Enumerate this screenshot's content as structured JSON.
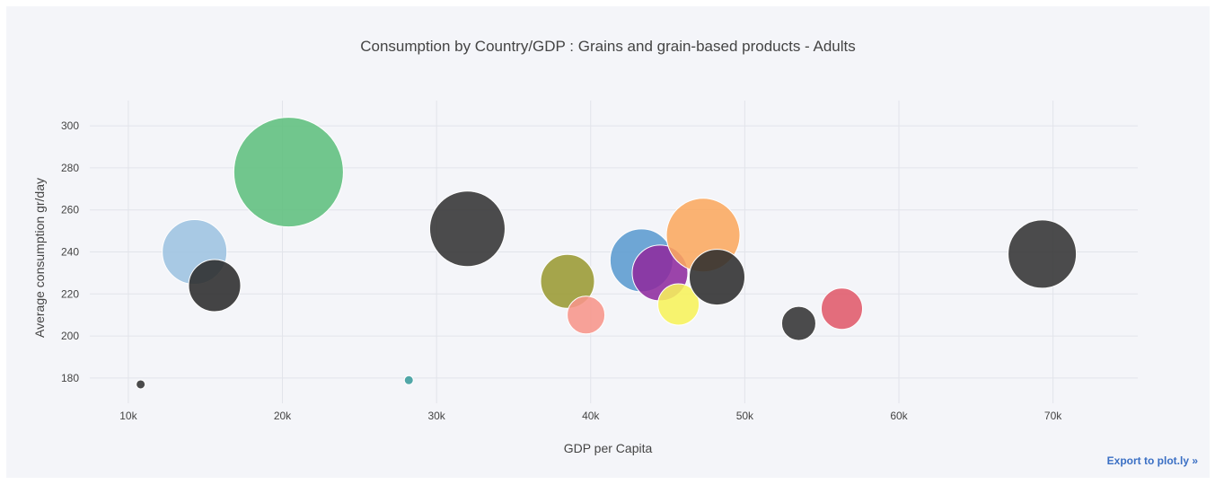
{
  "chart_data": {
    "type": "scatter",
    "title": "Consumption by Country/GDP : Grains and grain-based products  -  Adults",
    "xlabel": "GDP per Capita",
    "ylabel": "Average consumption gr/day",
    "xlim": [
      7500,
      75500
    ],
    "ylim": [
      168,
      312
    ],
    "x_ticks": [
      10000,
      20000,
      30000,
      40000,
      50000,
      60000,
      70000
    ],
    "x_tick_labels": [
      "10k",
      "20k",
      "30k",
      "40k",
      "50k",
      "60k",
      "70k"
    ],
    "y_ticks": [
      180,
      200,
      220,
      240,
      260,
      280,
      300
    ],
    "y_tick_labels": [
      "180",
      "200",
      "220",
      "240",
      "260",
      "280",
      "300"
    ],
    "grid": true,
    "marker": "bubble",
    "points": [
      {
        "x": 10800,
        "y": 177,
        "size": 5,
        "color": "#333333"
      },
      {
        "x": 28200,
        "y": 179,
        "size": 5,
        "color": "#3a9c9c"
      },
      {
        "x": 14300,
        "y": 240,
        "size": 36,
        "color": "#9dc3e0"
      },
      {
        "x": 15600,
        "y": 224,
        "size": 29,
        "color": "#2b2b2b"
      },
      {
        "x": 20400,
        "y": 278,
        "size": 61,
        "color": "#5fbf7d"
      },
      {
        "x": 32000,
        "y": 251,
        "size": 42,
        "color": "#333333"
      },
      {
        "x": 38500,
        "y": 226,
        "size": 30,
        "color": "#9a9a32"
      },
      {
        "x": 39700,
        "y": 210,
        "size": 21,
        "color": "#f7958a"
      },
      {
        "x": 43300,
        "y": 236,
        "size": 35,
        "color": "#5b9bcf"
      },
      {
        "x": 44500,
        "y": 230,
        "size": 31,
        "color": "#8e2b9e"
      },
      {
        "x": 47300,
        "y": 248,
        "size": 41,
        "color": "#fba95f"
      },
      {
        "x": 45700,
        "y": 215,
        "size": 23,
        "color": "#f7f35a"
      },
      {
        "x": 48200,
        "y": 228,
        "size": 31,
        "color": "#2e2e2e"
      },
      {
        "x": 53500,
        "y": 206,
        "size": 19,
        "color": "#333333"
      },
      {
        "x": 56300,
        "y": 213,
        "size": 23,
        "color": "#e05a6a"
      },
      {
        "x": 69300,
        "y": 239,
        "size": 38,
        "color": "#333333"
      }
    ]
  },
  "export_link": "Export to plot.ly »"
}
